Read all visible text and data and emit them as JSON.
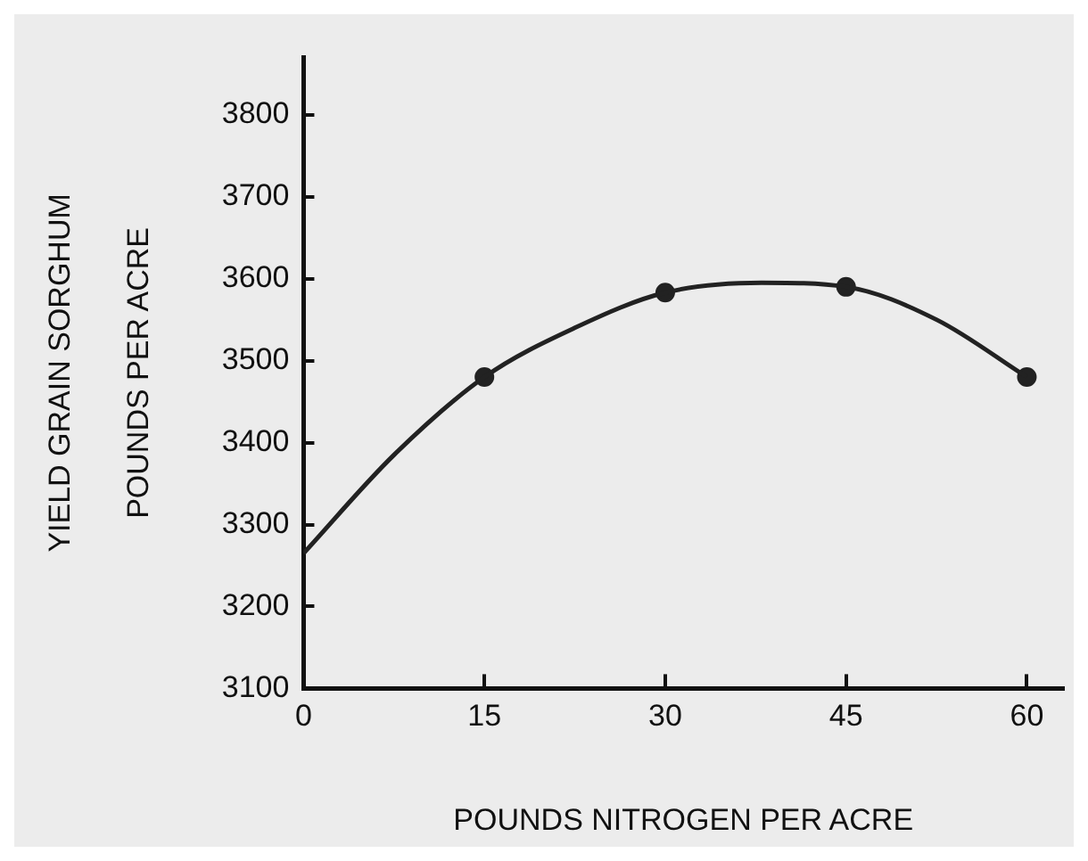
{
  "chart_data": {
    "type": "scatter",
    "xlabel": "POUNDS NITROGEN PER ACRE",
    "ylabel": "YIELD GRAIN SORGHUM\nPOUNDS PER ACRE",
    "xlim": [
      0,
      63
    ],
    "xticks": [
      0,
      15,
      30,
      45,
      60
    ],
    "ylim": [
      3100,
      3870
    ],
    "yticks": [
      3100,
      3200,
      3300,
      3400,
      3500,
      3600,
      3700,
      3800
    ],
    "grid": false,
    "legend": false,
    "series": [
      {
        "type": "line",
        "color": "#222222",
        "marker": "none",
        "x": [
          0,
          7.5,
          15,
          22.5,
          30,
          38,
          45,
          52.5,
          60
        ],
        "values": [
          3265,
          3385,
          3480,
          3540,
          3583,
          3595,
          3590,
          3550,
          3480
        ]
      },
      {
        "type": "scatter",
        "color": "#222222",
        "marker": "circle",
        "x": [
          15,
          30,
          45,
          60
        ],
        "values": [
          3480,
          3583,
          3590,
          3480
        ]
      }
    ]
  }
}
